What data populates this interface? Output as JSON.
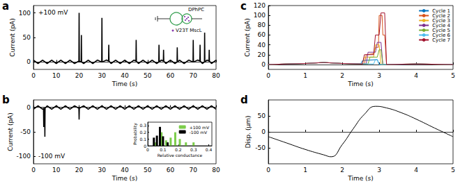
{
  "chart_data": [
    {
      "title": "a",
      "type": "line",
      "xlabel": "Time (s)",
      "ylabel": "Current (pA)",
      "annotations": [
        "+100 mV",
        "DPhPC",
        "V23T MscL"
      ],
      "xlim": [
        0,
        80
      ],
      "xticks": [
        0,
        10,
        20,
        30,
        40,
        50,
        60,
        70,
        80
      ],
      "ylim": [
        -15,
        115
      ],
      "yticks": [
        0,
        50,
        100
      ],
      "series": [
        {
          "color": "#000000",
          "x": [
            0,
            2,
            4,
            6,
            8,
            10,
            12,
            14,
            16,
            18,
            19.9,
            20,
            20.1,
            20.9,
            21,
            21.1,
            22,
            24,
            26,
            28,
            29.9,
            30,
            30.1,
            32,
            32.9,
            33,
            33.1,
            34,
            36,
            38,
            40,
            42,
            44,
            44.9,
            45,
            45.1,
            46,
            48,
            50,
            52,
            54,
            54.9,
            55,
            55.1,
            56,
            56.9,
            57,
            57.1,
            58,
            60,
            62,
            62.9,
            63,
            63.1,
            64,
            66,
            68,
            69.9,
            70,
            70.1,
            72,
            72.9,
            73,
            73.1,
            74,
            74.9,
            75,
            75.1,
            76,
            76.9,
            77,
            77.1,
            78,
            80
          ],
          "values": [
            4,
            -3,
            4,
            -3,
            4,
            -3,
            4,
            -3,
            4,
            -3,
            2,
            100,
            2,
            0,
            55,
            0,
            -3,
            4,
            -3,
            4,
            0,
            90,
            0,
            4,
            2,
            35,
            2,
            -3,
            4,
            -3,
            4,
            -3,
            4,
            2,
            45,
            2,
            -3,
            4,
            -3,
            4,
            -3,
            0,
            35,
            0,
            4,
            2,
            25,
            2,
            -3,
            4,
            -3,
            0,
            30,
            0,
            4,
            -3,
            4,
            0,
            45,
            0,
            4,
            2,
            35,
            2,
            -3,
            0,
            60,
            0,
            4,
            2,
            25,
            2,
            -3,
            4
          ]
        }
      ]
    },
    {
      "title": "b",
      "type": "line",
      "xlabel": "Time (s)",
      "ylabel": "Current (pA)",
      "annotations": [
        "-100 mV"
      ],
      "xlim": [
        0,
        80
      ],
      "xticks": [
        0,
        10,
        20,
        30,
        40,
        50,
        60,
        70,
        80
      ],
      "ylim": [
        -115,
        15
      ],
      "yticks": [
        -100,
        -50,
        0
      ],
      "series": [
        {
          "color": "#000000",
          "x": [
            0,
            2,
            4,
            4.4,
            4.5,
            4.6,
            4.9,
            5,
            5.1,
            6,
            8,
            10,
            12,
            14,
            16,
            18,
            19.9,
            20,
            20.1,
            22,
            24,
            26,
            28,
            30,
            32,
            34,
            36,
            38,
            40,
            42,
            44,
            46,
            48,
            50,
            52,
            54,
            56,
            58,
            60,
            62,
            64,
            66,
            68,
            70,
            72,
            74,
            76,
            78,
            80
          ],
          "values": [
            -4,
            3,
            -4,
            -2,
            -40,
            -2,
            -2,
            -60,
            -2,
            3,
            -4,
            3,
            -4,
            3,
            -4,
            3,
            -2,
            -25,
            -2,
            3,
            -4,
            3,
            -4,
            3,
            -4,
            3,
            -4,
            3,
            -4,
            3,
            -4,
            3,
            -4,
            3,
            -4,
            3,
            -4,
            3,
            -4,
            3,
            -4,
            3,
            -4,
            3,
            -4,
            3,
            -4,
            3,
            -4
          ]
        }
      ]
    },
    {
      "type": "bar",
      "xlabel": "Relative conductance",
      "ylabel": "Probability",
      "legend": "upper right",
      "xlim": [
        0,
        0.42
      ],
      "xticks": [
        0,
        0.1,
        0.2,
        0.3,
        0.4
      ],
      "ylim": [
        0,
        0.35
      ],
      "yticks": [
        0,
        0.1,
        0.2,
        0.3
      ],
      "series": [
        {
          "name": "+100 mV",
          "color": "#7ccd4b",
          "x": [
            0.05,
            0.09,
            0.12,
            0.15,
            0.18,
            0.21,
            0.25,
            0.3
          ],
          "values": [
            0.05,
            0.2,
            0.08,
            0.12,
            0.2,
            0.1,
            0.05,
            0.05
          ]
        },
        {
          "name": "-100 mV",
          "color": "#000000",
          "x": [
            0.04,
            0.06,
            0.08,
            0.1,
            0.13
          ],
          "values": [
            0.12,
            0.15,
            0.28,
            0.14,
            0.05
          ]
        }
      ]
    },
    {
      "title": "c",
      "type": "line",
      "xlabel": "Time (s)",
      "ylabel": "Current (pA)",
      "legend": "upper right",
      "xlim": [
        0,
        5
      ],
      "xticks": [
        0,
        1,
        2,
        3,
        4,
        5
      ],
      "ylim": [
        -10,
        120
      ],
      "yticks": [
        0,
        20,
        40,
        60,
        80,
        100,
        120
      ],
      "series": [
        {
          "name": "Cycle 1",
          "color": "#0072BD",
          "x": [
            0,
            1,
            1.5,
            2,
            2.5,
            2.55,
            2.95,
            3.0,
            3.5,
            4,
            5
          ],
          "values": [
            0,
            2,
            4,
            2,
            1,
            8,
            10,
            0,
            0,
            1,
            0
          ]
        },
        {
          "name": "Cycle 2",
          "color": "#D95319",
          "x": [
            0,
            1,
            1.5,
            2,
            2.6,
            2.65,
            2.85,
            2.9,
            2.98,
            3.0,
            3.08,
            3.1,
            3.15,
            3.2,
            4,
            5
          ],
          "values": [
            0,
            2,
            4,
            2,
            1,
            20,
            22,
            35,
            35,
            100,
            100,
            60,
            60,
            0,
            1,
            0
          ]
        },
        {
          "name": "Cycle 3",
          "color": "#EDB120",
          "x": [
            0,
            1,
            1.5,
            2,
            2.55,
            2.6,
            2.85,
            2.9,
            3.0,
            3.05,
            4,
            5
          ],
          "values": [
            0,
            2,
            4,
            2,
            1,
            15,
            15,
            40,
            40,
            0,
            1,
            0
          ]
        },
        {
          "name": "Cycle 4",
          "color": "#7E2F8E",
          "x": [
            0,
            1,
            1.5,
            2,
            2.65,
            2.7,
            2.9,
            2.95,
            3.05,
            3.1,
            4,
            5
          ],
          "values": [
            0,
            2,
            4,
            2,
            1,
            25,
            25,
            45,
            45,
            0,
            1,
            0
          ]
        },
        {
          "name": "Cycle 5",
          "color": "#77AC30",
          "x": [
            0,
            1,
            1.5,
            2,
            2.7,
            2.75,
            2.95,
            3.0,
            3.05,
            3.1,
            4,
            5
          ],
          "values": [
            0,
            2,
            4,
            2,
            1,
            15,
            15,
            30,
            30,
            0,
            1,
            0
          ]
        },
        {
          "name": "Cycle 6",
          "color": "#4DBEEE",
          "x": [
            0,
            1,
            1.5,
            2,
            2.85,
            2.9,
            2.95,
            3.0,
            4,
            5
          ],
          "values": [
            0,
            2,
            4,
            2,
            1,
            10,
            10,
            0,
            1,
            0
          ]
        },
        {
          "name": "Cycle 7",
          "color": "#A2142F",
          "x": [
            0,
            1,
            1.5,
            2,
            2.55,
            2.6,
            2.85,
            2.9,
            3.0,
            3.05,
            3.15,
            3.2,
            4,
            5
          ],
          "values": [
            0,
            2,
            4,
            2,
            1,
            20,
            20,
            60,
            60,
            105,
            105,
            0,
            1,
            0
          ]
        }
      ]
    },
    {
      "title": "d",
      "type": "line",
      "xlabel": "Time (s)",
      "ylabel": "Disp. (µm)",
      "xlim": [
        0,
        5
      ],
      "xticks": [
        0,
        1,
        2,
        3,
        4,
        5
      ],
      "ylim": [
        -100,
        100
      ],
      "yticks": [
        -50,
        0,
        50
      ],
      "series": [
        {
          "color": "#000000",
          "x": [
            0,
            0.5,
            1,
            1.5,
            1.7,
            2,
            2.3,
            2.6,
            2.9,
            3.2,
            3.6,
            4,
            4.5,
            5
          ],
          "values": [
            -15,
            -35,
            -55,
            -72,
            -78,
            -40,
            10,
            55,
            80,
            75,
            60,
            40,
            12,
            -15
          ]
        }
      ]
    }
  ]
}
